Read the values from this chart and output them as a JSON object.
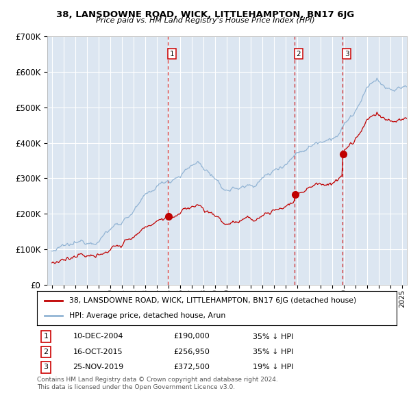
{
  "title": "38, LANSDOWNE ROAD, WICK, LITTLEHAMPTON, BN17 6JG",
  "subtitle": "Price paid vs. HM Land Registry's House Price Index (HPI)",
  "legend_line1": "38, LANSDOWNE ROAD, WICK, LITTLEHAMPTON, BN17 6JG (detached house)",
  "legend_line2": "HPI: Average price, detached house, Arun",
  "transactions": [
    {
      "num": 1,
      "date": "10-DEC-2004",
      "price": "£190,000",
      "pct": "35% ↓ HPI",
      "year": 2004.92
    },
    {
      "num": 2,
      "date": "16-OCT-2015",
      "price": "£256,950",
      "pct": "35% ↓ HPI",
      "year": 2015.79
    },
    {
      "num": 3,
      "date": "25-NOV-2019",
      "price": "£372,500",
      "pct": "19% ↓ HPI",
      "year": 2019.9
    }
  ],
  "footnote1": "Contains HM Land Registry data © Crown copyright and database right 2024.",
  "footnote2": "This data is licensed under the Open Government Licence v3.0.",
  "hpi_color": "#92b4d4",
  "price_color": "#c00000",
  "vline_color": "#cc0000",
  "plot_bg": "#dce6f1",
  "ylim": [
    0,
    700000
  ],
  "yticks": [
    0,
    100000,
    200000,
    300000,
    400000,
    500000,
    600000,
    700000
  ],
  "xlim_start": 1994.6,
  "xlim_end": 2025.4,
  "price_1": 190000,
  "price_2": 256950,
  "price_3": 372500
}
